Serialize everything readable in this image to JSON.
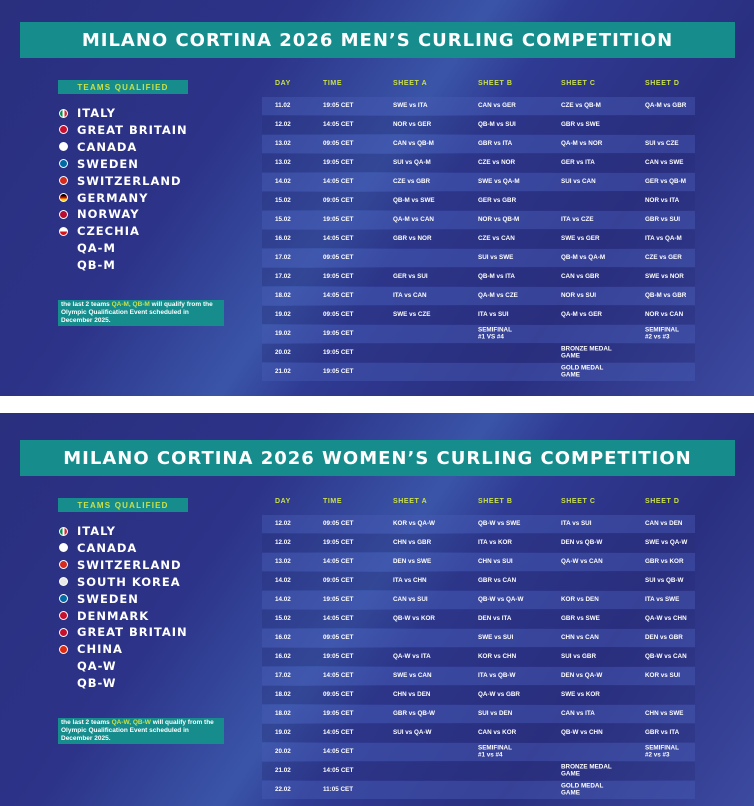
{
  "men": {
    "title": "MILANO CORTINA 2026 MEN’S CURLING COMPETITION",
    "teams_label": "TEAMS QUALIFIED",
    "teams": [
      "ITALY",
      "GREAT BRITAIN",
      "CANADA",
      "SWEDEN",
      "SWITZERLAND",
      "GERMANY",
      "NORWAY",
      "CZECHIA",
      "QA-M",
      "QB-M"
    ],
    "note": [
      "the last 2 teams ",
      "QA-M, QB-M",
      " will qualify from the Olympic Qualification Event scheduled in December 2025."
    ],
    "table": {
      "header": [
        "DAY",
        "TIME",
        "SHEET A",
        "SHEET B",
        "SHEET C",
        "SHEET D"
      ],
      "rows": [
        [
          "11.02",
          "19:05 CET",
          "SWE vs ITA",
          "CAN vs GER",
          "CZE vs QB-M",
          "QA-M vs GBR"
        ],
        [
          "12.02",
          "14:05 CET",
          "NOR vs GER",
          "QB-M vs SUI",
          "GBR vs SWE",
          null
        ],
        [
          "13.02",
          "09:05 CET",
          "CAN vs QB-M",
          "GBR vs ITA",
          "QA-M vs NOR",
          "SUI vs CZE"
        ],
        [
          "13.02",
          "19:05 CET",
          "SUI vs QA-M",
          "CZE vs NOR",
          "GER vs ITA",
          "CAN vs SWE"
        ],
        [
          "14.02",
          "14:05 CET",
          "CZE vs GBR",
          "SWE vs QA-M",
          "SUI vs CAN",
          "GER vs QB-M"
        ],
        [
          "15.02",
          "09:05 CET",
          "QB-M vs SWE",
          "GER vs GBR",
          null,
          "NOR vs ITA"
        ],
        [
          "15.02",
          "19:05 CET",
          "QA-M vs CAN",
          "NOR vs QB-M",
          "ITA vs CZE",
          "GBR vs SUI"
        ],
        [
          "16.02",
          "14:05 CET",
          "GBR vs NOR",
          "CZE vs CAN",
          "SWE vs GER",
          "ITA vs QA-M"
        ],
        [
          "17.02",
          "09:05 CET",
          null,
          "SUI vs SWE",
          "QB-M vs QA-M",
          "CZE vs GER"
        ],
        [
          "17.02",
          "19:05 CET",
          "GER vs SUI",
          "QB-M vs ITA",
          "CAN vs GBR",
          "SWE vs NOR"
        ],
        [
          "18.02",
          "14:05 CET",
          "ITA vs CAN",
          "QA-M vs CZE",
          "NOR vs SUI",
          "QB-M vs GBR"
        ],
        [
          "19.02",
          "09:05 CET",
          "SWE vs CZE",
          "ITA vs SUI",
          "QA-M vs GER",
          "NOR vs CAN"
        ],
        [
          "19.02",
          "19:05 CET",
          null,
          "SEMIFINAL\n#1 VS #4",
          null,
          "SEMIFINAL\n#2 vs #3"
        ],
        [
          "20.02",
          "19:05 CET",
          null,
          null,
          "BRONZE MEDAL\nGAME",
          null
        ],
        [
          "21.02",
          "19:05 CET",
          null,
          null,
          "GOLD MEDAL\nGAME",
          null
        ]
      ]
    }
  },
  "women": {
    "title": "MILANO CORTINA 2026 WOMEN’S CURLING COMPETITION",
    "teams_label": "TEAMS QUALIFIED",
    "teams": [
      "ITALY",
      "CANADA",
      "SWITZERLAND",
      "SOUTH KOREA",
      "SWEDEN",
      "DENMARK",
      "GREAT BRITAIN",
      "CHINA",
      "QA-W",
      "QB-W"
    ],
    "note": [
      "the last 2 teams ",
      "QA-W, QB-W",
      " will qualify from the Olympic Qualification Event scheduled in December 2025."
    ],
    "table": {
      "header": [
        "DAY",
        "TIME",
        "SHEET A",
        "SHEET B",
        "SHEET C",
        "SHEET D"
      ],
      "rows": [
        [
          "12.02",
          "09:05 CET",
          "KOR vs QA-W",
          "QB-W vs SWE",
          "ITA vs SUI",
          "CAN vs DEN"
        ],
        [
          "12.02",
          "19:05 CET",
          "CHN vs GBR",
          "ITA vs KOR",
          "DEN vs QB-W",
          "SWE vs QA-W"
        ],
        [
          "13.02",
          "14:05 CET",
          "DEN vs SWE",
          "CHN vs SUI",
          "QA-W vs CAN",
          "GBR vs KOR"
        ],
        [
          "14.02",
          "09:05 CET",
          "ITA vs CHN",
          "GBR vs CAN",
          null,
          "SUI vs QB-W"
        ],
        [
          "14.02",
          "19:05 CET",
          "CAN vs SUI",
          "QB-W vs QA-W",
          "KOR vs DEN",
          "ITA vs SWE"
        ],
        [
          "15.02",
          "14:05 CET",
          "QB-W vs KOR",
          "DEN vs ITA",
          "GBR vs SWE",
          "QA-W vs CHN"
        ],
        [
          "16.02",
          "09:05 CET",
          null,
          "SWE vs SUI",
          "CHN vs CAN",
          "DEN vs GBR"
        ],
        [
          "16.02",
          "19:05 CET",
          "QA-W vs ITA",
          "KOR vs CHN",
          "SUI vs GBR",
          "QB-W vs CAN"
        ],
        [
          "17.02",
          "14:05 CET",
          "SWE vs CAN",
          "ITA vs QB-W",
          "DEN vs QA-W",
          "KOR vs SUI"
        ],
        [
          "18.02",
          "09:05 CET",
          "CHN vs DEN",
          "QA-W vs GBR",
          "SWE vs KOR",
          null
        ],
        [
          "18.02",
          "19:05 CET",
          "GBR vs QB-W",
          "SUI vs DEN",
          "CAN vs ITA",
          "CHN vs SWE"
        ],
        [
          "19.02",
          "14:05 CET",
          "SUI vs QA-W",
          "CAN vs KOR",
          "QB-W vs CHN",
          "GBR vs ITA"
        ],
        [
          "20.02",
          "14:05 CET",
          null,
          "SEMIFINAL\n#1 vs #4",
          null,
          "SEMIFINAL\n#2 vs #3"
        ],
        [
          "21.02",
          "14:05 CET",
          null,
          null,
          "BRONZE MEDAL\nGAME",
          null
        ],
        [
          "22.02",
          "11:05 CET",
          null,
          null,
          "GOLD MEDAL\nGAME",
          null
        ]
      ]
    }
  }
}
